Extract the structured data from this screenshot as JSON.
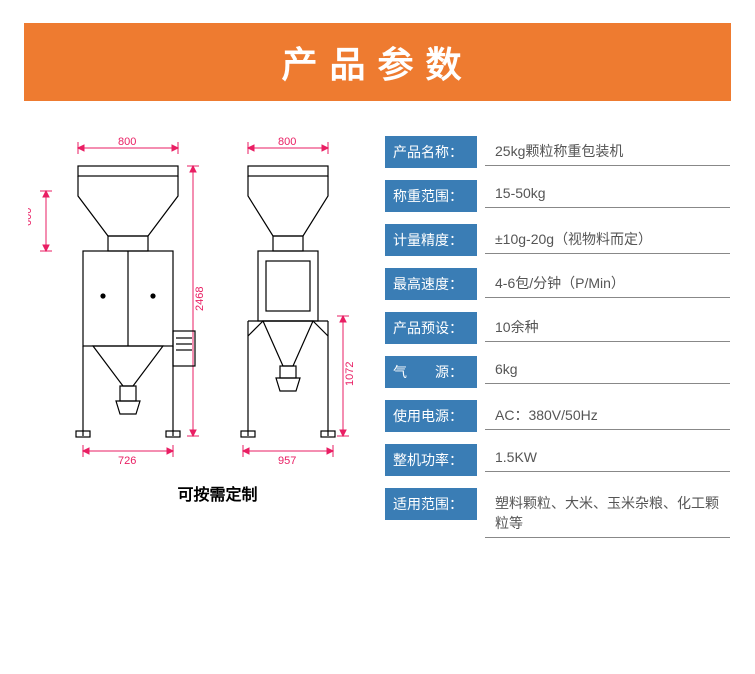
{
  "header": {
    "title": "产品参数",
    "bg_color": "#ee7b30",
    "text_color": "#ffffff",
    "fontsize": 36
  },
  "drawing": {
    "caption": "可按需定制",
    "dim_color": "#e91e63",
    "line_color": "#000000",
    "front": {
      "width_top": "800",
      "height_top": "600",
      "width_bottom": "726",
      "height_full": "2468"
    },
    "side": {
      "width_top": "800",
      "width_bottom": "957",
      "height_lower": "1072"
    }
  },
  "specs": {
    "label_bg": "#3a7db5",
    "label_color": "#ffffff",
    "value_color": "#555555",
    "underline_color": "#888888",
    "rows": [
      {
        "label": "产品名称：",
        "value": "25kg颗粒称重包装机"
      },
      {
        "label": "称重范围：",
        "value": "15-50kg"
      },
      {
        "label": "计量精度：",
        "value": "±10g-20g（视物料而定）"
      },
      {
        "label": "最高速度：",
        "value": "4-6包/分钟（P/Min）"
      },
      {
        "label": "产品预设：",
        "value": "10余种"
      },
      {
        "label": "气　　源：",
        "value": "6kg"
      },
      {
        "label": "使用电源：",
        "value": "AC：380V/50Hz"
      },
      {
        "label": "整机功率：",
        "value": "1.5KW"
      },
      {
        "label": "适用范围：",
        "value": "塑料颗粒、大米、玉米杂粮、化工颗粒等"
      }
    ]
  }
}
